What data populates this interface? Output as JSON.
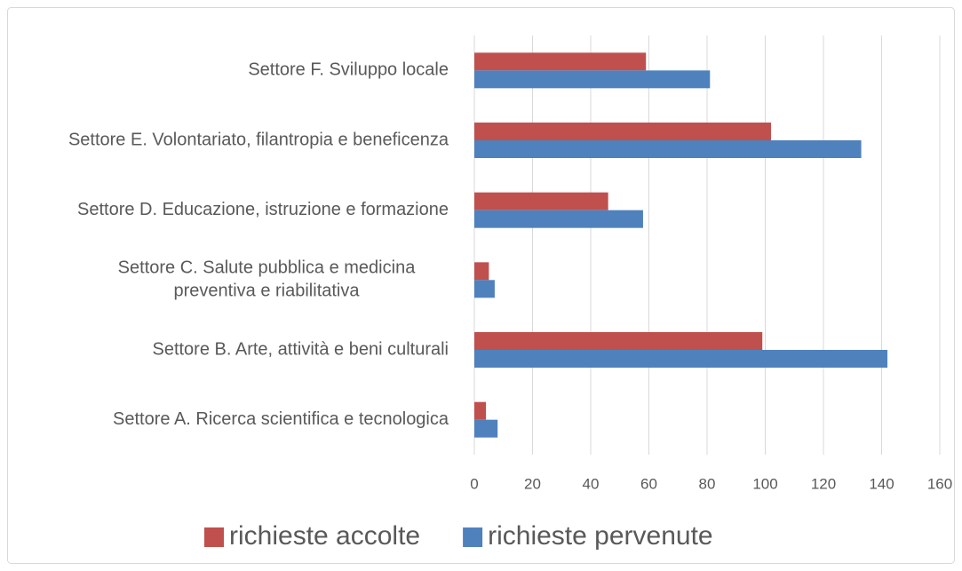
{
  "chart_data": {
    "type": "bar",
    "orientation": "horizontal",
    "categories": [
      "Settore A. Ricerca scientifica e tecnologica",
      "Settore B. Arte, attività e beni culturali",
      "Settore C. Salute pubblica e medicina preventiva e riabilitativa",
      "Settore D. Educazione, istruzione e formazione",
      "Settore E. Volontariato, filantropia e beneficenza",
      "Settore F. Sviluppo locale"
    ],
    "series": [
      {
        "name": "richieste accolte",
        "color": "#c0504d",
        "values": [
          4,
          99,
          5,
          46,
          102,
          59
        ]
      },
      {
        "name": "richieste pervenute",
        "color": "#4f81bd",
        "values": [
          8,
          142,
          7,
          58,
          133,
          81
        ]
      }
    ],
    "xlim": [
      0,
      160
    ],
    "xticks": [
      0,
      20,
      40,
      60,
      80,
      100,
      120,
      140,
      160
    ],
    "grid": true,
    "legend": "bottom"
  }
}
